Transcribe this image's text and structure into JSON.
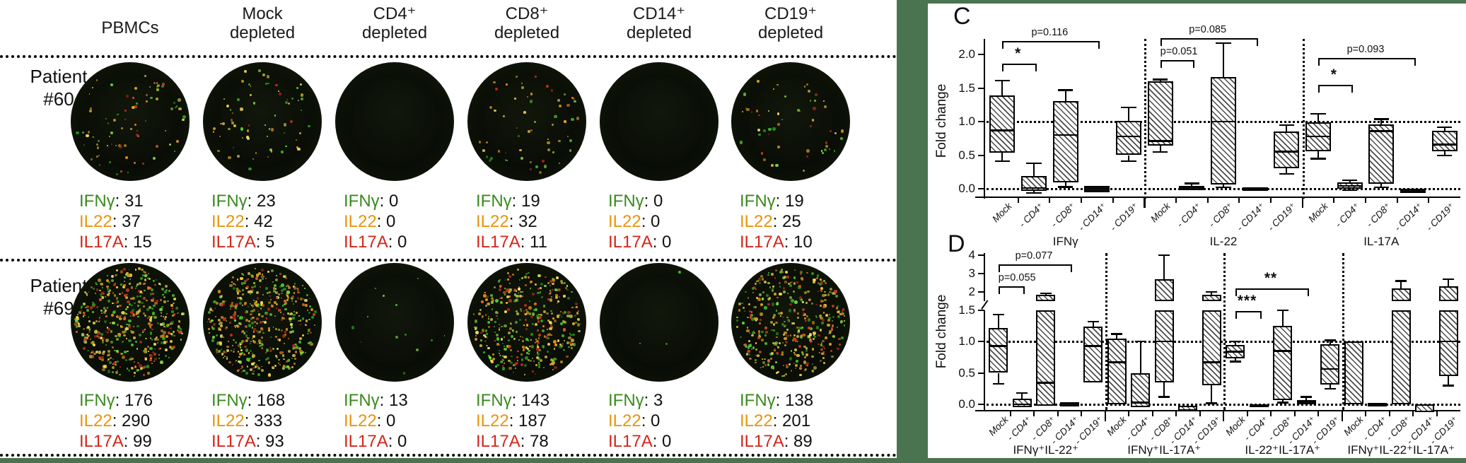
{
  "colors": {
    "background_green": "#4a7350",
    "ifng": "#3a8a1e",
    "il22": "#e8950c",
    "il17a": "#d3261a"
  },
  "elispot": {
    "column_headers": [
      [
        "PBMCs"
      ],
      [
        "Mock",
        "depleted"
      ],
      [
        "CD4⁺",
        "depleted"
      ],
      [
        "CD8⁺",
        "depleted"
      ],
      [
        "CD14⁺",
        "depleted"
      ],
      [
        "CD19⁺",
        "depleted"
      ]
    ],
    "cytokines": [
      {
        "key": "ifng",
        "label": "IFNγ"
      },
      {
        "key": "il22",
        "label": "IL22"
      },
      {
        "key": "il17a",
        "label": "IL17A"
      }
    ],
    "patients": [
      {
        "label": [
          "Patient",
          "#60"
        ],
        "wells": [
          {
            "ifng": 31,
            "il22": 37,
            "il17a": 15
          },
          {
            "ifng": 23,
            "il22": 42,
            "il17a": 5
          },
          {
            "ifng": 0,
            "il22": 0,
            "il17a": 0
          },
          {
            "ifng": 19,
            "il22": 32,
            "il17a": 11
          },
          {
            "ifng": 0,
            "il22": 0,
            "il17a": 0
          },
          {
            "ifng": 19,
            "il22": 25,
            "il17a": 10
          }
        ]
      },
      {
        "label": [
          "Patient",
          "#69"
        ],
        "wells": [
          {
            "ifng": 176,
            "il22": 290,
            "il17a": 99
          },
          {
            "ifng": 168,
            "il22": 333,
            "il17a": 93
          },
          {
            "ifng": 13,
            "il22": 0,
            "il17a": 0
          },
          {
            "ifng": 143,
            "il22": 187,
            "il17a": 78
          },
          {
            "ifng": 3,
            "il22": 0,
            "il17a": 0
          },
          {
            "ifng": 138,
            "il22": 201,
            "il17a": 89
          }
        ]
      }
    ]
  },
  "chart_data": [
    {
      "id": "C",
      "type": "boxplot",
      "ylabel": "Fold change",
      "yticks": [
        0.0,
        0.5,
        1.0,
        1.5,
        2.0
      ],
      "ylim": [
        -0.15,
        2.35
      ],
      "reference_lines": [
        0.0,
        1.0
      ],
      "grid": false,
      "legend": "none",
      "categories": [
        "Mock",
        "- CD4⁺",
        "- CD8⁺",
        "- CD14⁺",
        "- CD19⁺"
      ],
      "groups": [
        {
          "label": "IFNγ",
          "boxes": [
            {
              "lo": 0.54,
              "hi": 1.39,
              "med": 0.87,
              "wlo": 0.41,
              "whi": 1.61,
              "style": "hatched"
            },
            {
              "lo": -0.03,
              "hi": 0.19,
              "med": 0.01,
              "wlo": -0.06,
              "whi": 0.38,
              "style": "hatched"
            },
            {
              "lo": 0.09,
              "hi": 1.31,
              "med": 0.8,
              "wlo": 0.03,
              "whi": 1.47,
              "style": "hatched"
            },
            {
              "lo": -0.05,
              "hi": 0.04,
              "med": null,
              "wlo": null,
              "whi": null,
              "style": "solid"
            },
            {
              "lo": 0.5,
              "hi": 1.01,
              "med": 0.78,
              "wlo": 0.41,
              "whi": 1.21,
              "style": "hatched"
            }
          ],
          "annotations": [
            {
              "from": 0,
              "to": 1,
              "label": "*",
              "y": 1.86
            },
            {
              "from": 0,
              "to": 3,
              "label": "p=0.116",
              "y": 2.2
            }
          ]
        },
        {
          "label": "IL-22",
          "boxes": [
            {
              "lo": 0.64,
              "hi": 1.6,
              "med": 0.71,
              "wlo": 0.55,
              "whi": 1.63,
              "style": "hatched"
            },
            {
              "lo": -0.02,
              "hi": 0.04,
              "med": null,
              "wlo": null,
              "whi": 0.08,
              "style": "solid"
            },
            {
              "lo": 0.06,
              "hi": 1.66,
              "med": 1.0,
              "wlo": 0.02,
              "whi": 2.17,
              "style": "hatched"
            },
            {
              "lo": -0.03,
              "hi": 0.02,
              "med": null,
              "wlo": null,
              "whi": null,
              "style": "solid"
            },
            {
              "lo": 0.31,
              "hi": 0.85,
              "med": 0.55,
              "wlo": 0.22,
              "whi": 0.95,
              "style": "hatched"
            }
          ],
          "annotations": [
            {
              "from": 0,
              "to": 1,
              "label": "p=0.051",
              "y": 1.92
            },
            {
              "from": 0,
              "to": 3,
              "label": "p=0.085",
              "y": 2.24
            }
          ]
        },
        {
          "label": "IL-17A",
          "boxes": [
            {
              "lo": 0.56,
              "hi": 0.99,
              "med": 0.78,
              "wlo": 0.45,
              "whi": 1.12,
              "style": "hatched"
            },
            {
              "lo": 0.0,
              "hi": 0.09,
              "med": 0.04,
              "wlo": -0.02,
              "whi": 0.13,
              "style": "hatched"
            },
            {
              "lo": 0.07,
              "hi": 0.96,
              "med": 0.86,
              "wlo": 0.02,
              "whi": 1.04,
              "style": "hatched"
            },
            {
              "lo": -0.06,
              "hi": 0.0,
              "med": null,
              "wlo": null,
              "whi": null,
              "style": "solid"
            },
            {
              "lo": 0.56,
              "hi": 0.86,
              "med": 0.66,
              "wlo": 0.5,
              "whi": 0.92,
              "style": "hatched"
            }
          ],
          "annotations": [
            {
              "from": 0,
              "to": 1,
              "label": "*",
              "y": 1.55
            },
            {
              "from": 0,
              "to": 3,
              "label": "p=0.093",
              "y": 1.95
            }
          ]
        }
      ]
    },
    {
      "id": "D",
      "type": "boxplot",
      "ylabel": "Fold change",
      "yticks": [
        0.0,
        0.5,
        1.0,
        1.5
      ],
      "axis_break": {
        "at": 1.5,
        "upper_ticks": [
          2,
          3,
          4
        ]
      },
      "reference_lines": [
        0.0,
        1.0
      ],
      "grid": false,
      "legend": "none",
      "categories": [
        "Mock",
        "- CD4⁺",
        "- CD8⁺",
        "- CD14⁺",
        "- CD19⁺"
      ],
      "groups": [
        {
          "label": "IFNγ⁺IL-22⁺",
          "boxes": [
            {
              "lo": 0.5,
              "hi": 1.21,
              "med": 0.93,
              "wlo": 0.33,
              "whi": 1.43,
              "style": "hatched"
            },
            {
              "lo": -0.05,
              "hi": 0.09,
              "med": 0.0,
              "wlo": null,
              "whi": 0.18,
              "style": "hatched"
            },
            {
              "lo": -0.02,
              "hi": 1.85,
              "med": 0.34,
              "wlo": null,
              "whi": 1.93,
              "style": "hatched"
            },
            {
              "lo": -0.03,
              "hi": 0.03,
              "med": null,
              "wlo": null,
              "whi": null,
              "style": "solid"
            },
            {
              "lo": 0.35,
              "hi": 1.24,
              "med": 0.93,
              "wlo": null,
              "whi": 1.32,
              "style": "hatched"
            }
          ],
          "annotations": [
            {
              "from": 0,
              "to": 1,
              "label": "p=0.055",
              "y": 2.3
            },
            {
              "from": 0,
              "to": 3,
              "label": "p=0.077",
              "y": 3.5
            }
          ]
        },
        {
          "label": "IFNγ⁺IL-17A⁺",
          "boxes": [
            {
              "lo": 0.0,
              "hi": 1.04,
              "med": 0.67,
              "wlo": null,
              "whi": 1.12,
              "style": "hatched"
            },
            {
              "lo": -0.04,
              "hi": 0.49,
              "med": 0.03,
              "wlo": null,
              "whi": 1.0,
              "style": "hatched"
            },
            {
              "lo": 0.35,
              "hi": 2.7,
              "med": 1.0,
              "wlo": 0.12,
              "whi": 4.0,
              "style": "hatched"
            },
            {
              "lo": -0.1,
              "hi": -0.02,
              "med": null,
              "wlo": null,
              "whi": null,
              "style": "hatched"
            },
            {
              "lo": 0.3,
              "hi": 1.85,
              "med": 0.67,
              "wlo": 0.02,
              "whi": 2.0,
              "style": "hatched"
            }
          ],
          "annotations": []
        },
        {
          "label": "IL-22⁺IL-17A⁺",
          "boxes": [
            {
              "lo": 0.73,
              "hi": 0.94,
              "med": 0.84,
              "wlo": 0.68,
              "whi": 1.0,
              "style": "hatched"
            },
            {
              "lo": -0.05,
              "hi": 0.0,
              "med": null,
              "wlo": null,
              "whi": null,
              "style": "solid"
            },
            {
              "lo": 0.07,
              "hi": 1.25,
              "med": 0.85,
              "wlo": 0.03,
              "whi": 1.5,
              "style": "hatched"
            },
            {
              "lo": 0.0,
              "hi": 0.07,
              "med": null,
              "wlo": null,
              "whi": 0.12,
              "style": "solid"
            },
            {
              "lo": 0.31,
              "hi": 0.95,
              "med": 0.56,
              "wlo": 0.25,
              "whi": 1.02,
              "style": "hatched"
            }
          ],
          "annotations": [
            {
              "from": 0,
              "to": 1,
              "label": "***",
              "y": 1.48
            },
            {
              "from": 0,
              "to": 3,
              "label": "**",
              "y": 2.2
            }
          ]
        },
        {
          "label": "IFNγ⁺IL-22⁺IL-17A⁺",
          "boxes": [
            {
              "lo": 0.0,
              "hi": 1.0,
              "med": null,
              "wlo": null,
              "whi": null,
              "style": "hatched"
            },
            {
              "lo": -0.03,
              "hi": 0.02,
              "med": null,
              "wlo": null,
              "whi": null,
              "style": "solid"
            },
            {
              "lo": 0.0,
              "hi": 2.2,
              "med": null,
              "wlo": null,
              "whi": 2.6,
              "style": "hatched"
            },
            {
              "lo": -0.12,
              "hi": 0.0,
              "med": null,
              "wlo": null,
              "whi": null,
              "style": "hatched"
            },
            {
              "lo": 0.45,
              "hi": 2.3,
              "med": 1.0,
              "wlo": 0.3,
              "whi": 2.7,
              "style": "hatched"
            }
          ],
          "annotations": []
        }
      ]
    }
  ]
}
